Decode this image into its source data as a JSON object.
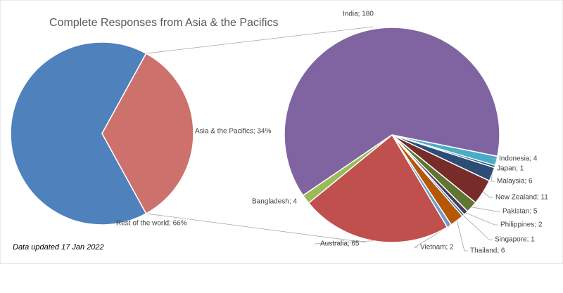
{
  "chart_data": [
    {
      "type": "pie",
      "title": "Complete Responses from Asia & the Pacifics",
      "values": [
        66,
        34
      ],
      "value_labels": [
        "Rest of the world; 66%",
        "Asia & the Pacifics; 34%"
      ],
      "colors": [
        "#4f81bd",
        "#cd716d"
      ]
    },
    {
      "type": "pie",
      "values": [
        180,
        4,
        1,
        6,
        11,
        5,
        2,
        1,
        6,
        2,
        65,
        4
      ],
      "value_labels": [
        "India; 180",
        "Indonesia; 4",
        "Japan; 1",
        "Malaysia; 6",
        "New Zealand; 11",
        "Pakistan; 5",
        "Philippines; 2",
        "Singapore; 1",
        "Thailand; 6",
        "Vietnam; 2",
        "Australia; 65",
        "Bangladesh; 4"
      ],
      "colors": [
        "#8064a2",
        "#4bacc6",
        "#1f497d",
        "#2c4d75",
        "#772c2a",
        "#5f7530",
        "#4d3b62",
        "#276a7c",
        "#b65708",
        "#729aca",
        "#c0504d",
        "#9bbb59"
      ]
    }
  ],
  "note": "Data updated 17 Jan 2022"
}
